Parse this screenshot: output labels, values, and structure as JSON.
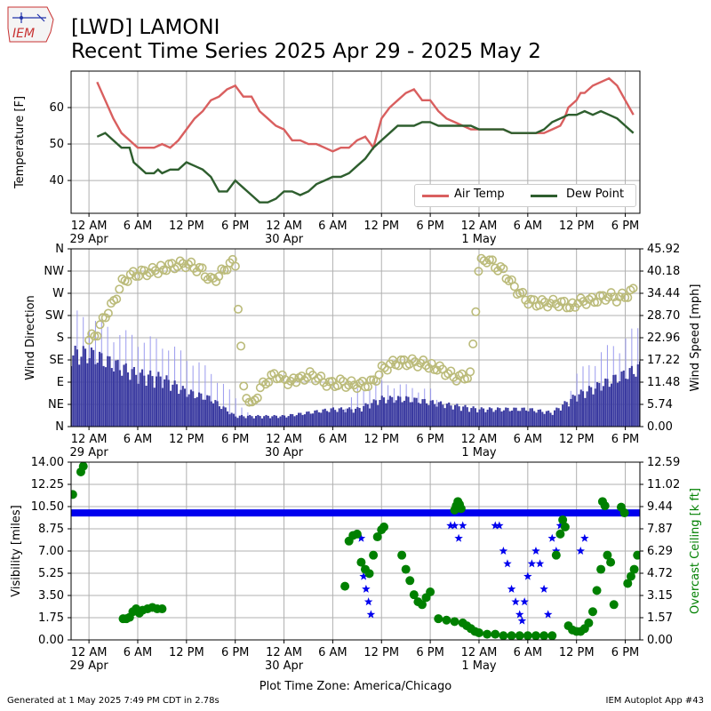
{
  "header": {
    "title_line1": "[LWD] LAMONI",
    "title_line2": "Recent Time Series 2025 Apr 29 - 2025 May 2",
    "logo_text": "IEM"
  },
  "footer": {
    "generated": "Generated at 1 May 2025 7:49 PM CDT in 2.78s",
    "app": "IEM Autoplot App #43"
  },
  "legend": {
    "air_temp": "Air Temp",
    "dew_point": "Dew Point"
  },
  "colors": {
    "air_temp": "#d95f5f",
    "dew_point": "#2e5e2e",
    "wind_bar": "#3a3aa0",
    "wind_gust": "#9a9aee",
    "wind_dir": "#bbbb7a",
    "visibility": "#0000ee",
    "ceiling": "#008000",
    "ceiling_label": "#008000"
  },
  "x_axis": {
    "tick_labels": [
      "12 AM",
      "6 AM",
      "12 PM",
      "6 PM",
      "12 AM",
      "6 AM",
      "12 PM",
      "6 PM",
      "12 AM",
      "6 AM",
      "12 PM",
      "6 PM"
    ],
    "tick_hours": [
      0,
      6,
      12,
      18,
      24,
      30,
      36,
      42,
      48,
      54,
      60,
      66
    ],
    "date_labels": [
      {
        "hour": 0,
        "text": "29 Apr"
      },
      {
        "hour": 24,
        "text": "30 Apr"
      },
      {
        "hour": 48,
        "text": "1 May"
      }
    ],
    "xlabel": "Plot Time Zone: America/Chicago",
    "range_hours": [
      -2.2,
      67.8
    ]
  },
  "chart_data": [
    {
      "type": "line",
      "ylabel": "Temperature [F]",
      "ylim": [
        31,
        70
      ],
      "yticks": [
        40,
        50,
        60
      ],
      "grid": true,
      "legend_position": "lower-right",
      "series": [
        {
          "name": "Air Temp",
          "x": [
            1,
            2,
            3,
            4,
            5,
            6,
            7,
            8,
            9,
            10,
            10.5,
            11,
            12,
            13,
            14,
            15,
            16,
            17,
            18,
            19,
            20,
            21,
            22,
            23,
            24,
            25,
            26,
            27,
            28,
            29,
            30,
            31,
            32,
            33,
            34,
            35,
            36,
            37,
            38,
            39,
            40,
            41,
            42,
            43,
            44,
            45,
            46,
            47,
            48,
            49,
            50,
            51,
            52,
            53,
            54,
            55,
            56,
            57,
            58,
            58.5,
            59,
            60,
            60.5,
            61,
            62,
            63,
            64,
            64.5,
            65,
            66,
            66.5,
            67
          ],
          "values": [
            67,
            62,
            57,
            53,
            51,
            49,
            49,
            49,
            50,
            49,
            50,
            51,
            54,
            57,
            59,
            62,
            63,
            65,
            66,
            63,
            63,
            59,
            57,
            55,
            54,
            51,
            51,
            50,
            50,
            49,
            48,
            49,
            49,
            51,
            52,
            49,
            57,
            60,
            62,
            64,
            65,
            62,
            62,
            59,
            57,
            56,
            55,
            54,
            54,
            54,
            54,
            54,
            53,
            53,
            53,
            53,
            53,
            54,
            55,
            57,
            60,
            62,
            64,
            64,
            66,
            67,
            68,
            67,
            66,
            62,
            60,
            58
          ]
        },
        {
          "name": "Dew Point",
          "x": [
            1,
            2,
            3,
            4,
            5,
            5.5,
            6,
            7,
            8,
            8.5,
            9,
            10,
            11,
            12,
            13,
            14,
            15,
            16,
            17,
            18,
            19,
            20,
            21,
            22,
            23,
            24,
            25,
            26,
            27,
            28,
            29,
            30,
            31,
            32,
            33,
            34,
            35,
            36,
            37,
            38,
            39,
            40,
            41,
            42,
            43,
            44,
            45,
            46,
            47,
            48,
            49,
            50,
            51,
            52,
            53,
            54,
            55,
            56,
            57,
            58,
            59,
            60,
            61,
            62,
            63,
            64,
            65,
            66,
            67
          ],
          "values": [
            52,
            53,
            51,
            49,
            49,
            45,
            44,
            42,
            42,
            43,
            42,
            43,
            43,
            45,
            44,
            43,
            41,
            37,
            37,
            40,
            38,
            36,
            34,
            34,
            35,
            37,
            37,
            36,
            37,
            39,
            40,
            41,
            41,
            42,
            44,
            46,
            49,
            51,
            53,
            55,
            55,
            55,
            56,
            56,
            55,
            55,
            55,
            55,
            55,
            54,
            54,
            54,
            54,
            53,
            53,
            53,
            53,
            54,
            56,
            57,
            58,
            58,
            59,
            58,
            59,
            58,
            57,
            55,
            53
          ]
        }
      ]
    },
    {
      "type": "bar",
      "ylabel": "Wind Direction",
      "ylabel_right": "Wind Speed [mph]",
      "direction_labels": [
        "N",
        "NE",
        "E",
        "SE",
        "S",
        "SW",
        "W",
        "NW",
        "N"
      ],
      "direction_degrees": [
        0,
        45,
        90,
        135,
        180,
        225,
        270,
        315,
        360
      ],
      "speed_ticks": [
        "0.00",
        "5.74",
        "11.48",
        "17.22",
        "22.96",
        "28.70",
        "34.44",
        "40.18",
        "45.92"
      ],
      "speed_ylim": [
        0,
        45.92
      ],
      "grid": true,
      "wind_speed_hours": [
        0,
        3,
        6,
        9,
        12,
        15,
        18,
        21,
        24,
        27,
        30,
        33,
        36,
        39,
        42,
        45,
        48,
        51,
        54,
        57,
        60,
        63,
        66,
        67.8
      ],
      "wind_speed_mph": [
        21,
        18,
        15,
        14,
        10,
        8,
        3,
        3,
        3,
        4,
        5,
        5,
        8,
        8,
        7,
        6,
        5,
        5,
        5,
        4,
        9,
        12,
        15,
        17
      ],
      "wind_gust_mph": [
        30,
        26,
        24,
        23,
        19,
        15,
        8,
        0,
        0,
        0,
        0,
        10,
        12,
        11,
        10,
        0,
        0,
        0,
        0,
        0,
        14,
        20,
        24,
        27
      ],
      "wind_dir_hours": [
        0,
        1,
        2,
        3,
        4,
        5,
        6,
        8,
        10,
        12,
        14,
        15,
        16,
        17,
        18,
        19,
        20,
        21,
        22,
        23,
        24,
        25,
        26,
        27,
        28,
        29,
        30,
        31,
        32,
        33,
        34,
        35,
        36,
        37,
        38,
        40,
        42,
        44,
        45,
        46,
        47,
        48,
        49,
        50,
        51,
        52,
        53,
        54,
        55,
        56,
        57,
        58,
        59,
        60,
        61,
        62,
        63,
        64,
        65,
        66,
        67
      ],
      "wind_dir_deg": [
        175,
        190,
        225,
        250,
        290,
        305,
        310,
        315,
        325,
        330,
        315,
        295,
        305,
        325,
        335,
        80,
        40,
        75,
        95,
        105,
        95,
        90,
        95,
        105,
        100,
        90,
        85,
        90,
        85,
        85,
        85,
        90,
        115,
        125,
        130,
        130,
        125,
        110,
        100,
        100,
        105,
        330,
        340,
        325,
        315,
        290,
        270,
        255,
        250,
        250,
        250,
        250,
        245,
        250,
        255,
        255,
        260,
        265,
        260,
        265,
        275
      ]
    },
    {
      "type": "scatter",
      "ylabel": "Visibility [miles]",
      "ylabel_right": "Overcast Ceiling [k ft]",
      "vis_ticks": [
        "0.00",
        "1.75",
        "3.50",
        "5.25",
        "7.00",
        "8.75",
        "10.50",
        "12.25",
        "14.00"
      ],
      "vis_ylim": [
        0,
        14
      ],
      "ceiling_ticks": [
        "0.00",
        "1.57",
        "3.15",
        "4.72",
        "6.29",
        "7.87",
        "9.44",
        "11.02",
        "12.59"
      ],
      "ceiling_ylim": [
        0,
        12.59
      ],
      "grid": true,
      "visibility_base_miles": 10,
      "visibility_drops": [
        {
          "x": [
            33.5,
            33.8,
            34.1,
            34.4,
            34.7
          ],
          "values": [
            8,
            5,
            4,
            3,
            2
          ]
        },
        {
          "x": [
            44.5,
            45,
            45.5,
            46
          ],
          "values": [
            9,
            9,
            8,
            9
          ]
        },
        {
          "x": [
            50,
            50.5,
            51,
            51.5,
            52,
            52.5,
            53,
            53.3,
            53.6,
            54,
            54.5,
            55,
            55.5,
            56,
            56.5
          ],
          "values": [
            9,
            9,
            7,
            6,
            4,
            3,
            2,
            1.5,
            3,
            5,
            6,
            7,
            6,
            4,
            2
          ]
        },
        {
          "x": [
            57,
            57.5,
            58,
            60.5,
            61
          ],
          "values": [
            8,
            7,
            9,
            7,
            8
          ]
        }
      ],
      "ceiling_points": [
        {
          "x": [
            -2,
            -1,
            -0.7
          ],
          "values": [
            10.3,
            11.9,
            12.3
          ]
        },
        {
          "x": [
            4.2,
            4.6,
            5,
            5.4,
            5.8,
            6.2,
            6.6,
            7.2,
            7.8,
            8.4,
            9
          ],
          "values": [
            1.5,
            1.5,
            1.6,
            2.0,
            2.2,
            1.9,
            2.1,
            2.2,
            2.3,
            2.2,
            2.2
          ]
        },
        {
          "x": [
            31.5,
            32,
            32.5,
            33,
            33.5,
            34,
            34.5,
            35,
            35.5,
            36,
            36.3
          ],
          "values": [
            3.8,
            7.0,
            7.4,
            7.5,
            5.5,
            5.0,
            4.7,
            6.0,
            7.3,
            7.8,
            8.0
          ]
        },
        {
          "x": [
            38.5,
            39,
            39.5,
            40,
            40.5,
            41,
            41.5,
            42
          ],
          "values": [
            6.0,
            5.0,
            4.2,
            3.2,
            2.7,
            2.5,
            3.0,
            3.4
          ]
        },
        {
          "x": [
            43,
            44,
            45,
            46,
            46.5,
            47,
            47.5,
            48,
            49,
            50,
            51,
            52,
            53,
            54,
            55,
            56,
            57
          ],
          "values": [
            1.5,
            1.4,
            1.3,
            1.2,
            1.0,
            0.8,
            0.6,
            0.5,
            0.4,
            0.4,
            0.3,
            0.3,
            0.3,
            0.3,
            0.3,
            0.3,
            0.3
          ]
        },
        {
          "x": [
            45,
            45.2,
            45.4,
            45.6,
            45.8
          ],
          "values": [
            9.2,
            9.5,
            9.8,
            9.6,
            9.3
          ]
        },
        {
          "x": [
            57.5,
            58,
            58.3,
            58.6,
            59,
            59.5,
            60,
            60.5,
            61,
            61.5,
            62,
            62.5,
            63
          ],
          "values": [
            6.0,
            7.5,
            8.5,
            8.0,
            1.0,
            0.7,
            0.6,
            0.6,
            0.8,
            1.2,
            2.0,
            3.5,
            5.0
          ]
        },
        {
          "x": [
            63.2,
            63.5,
            63.8,
            64.2,
            64.6
          ],
          "values": [
            9.8,
            9.5,
            6.0,
            5.5,
            2.5
          ]
        },
        {
          "x": [
            65.5,
            65.9,
            66.3,
            66.7,
            67.1,
            67.5
          ],
          "values": [
            9.4,
            9.0,
            4.0,
            4.5,
            5.0,
            6.0
          ]
        }
      ]
    }
  ]
}
